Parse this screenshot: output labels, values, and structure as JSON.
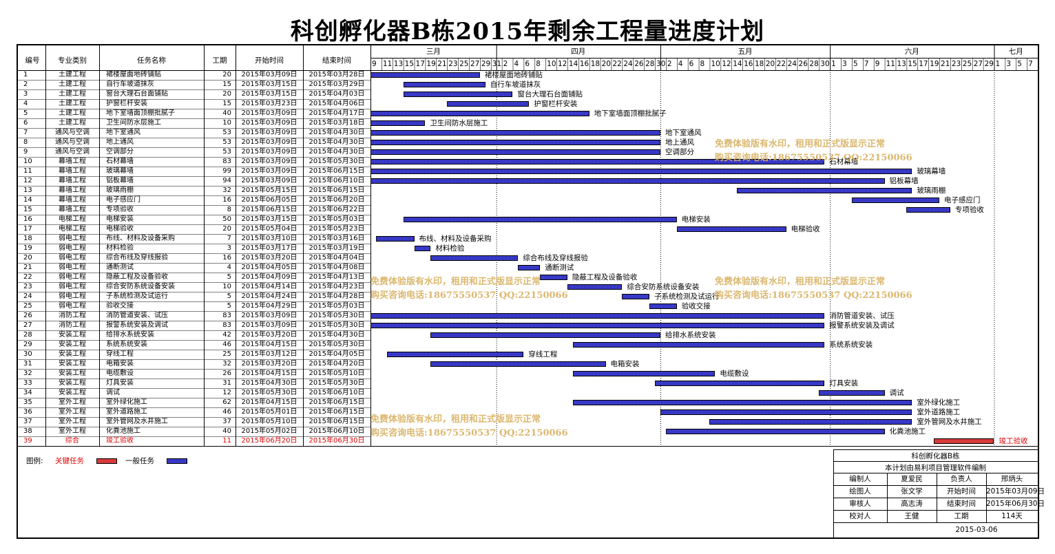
{
  "title": "科创孵化器B栋2015年剩余工程量进度计划",
  "columns": {
    "no": "编号",
    "category": "专业类别",
    "name": "任务名称",
    "duration": "工期",
    "start": "开始时间",
    "end": "结束时间"
  },
  "months": [
    "三月",
    "四月",
    "五月",
    "六月",
    "七月"
  ],
  "day_ticks": [
    "9",
    "11",
    "13",
    "15",
    "17",
    "19",
    "21",
    "23",
    "25",
    "27",
    "29",
    "31",
    "2",
    "4",
    "6",
    "8",
    "10",
    "12",
    "14",
    "16",
    "18",
    "20",
    "22",
    "24",
    "26",
    "28",
    "30",
    "2",
    "4",
    "6",
    "8",
    "10",
    "12",
    "14",
    "16",
    "18",
    "20",
    "22",
    "24",
    "26",
    "28",
    "30",
    "1",
    "3",
    "5",
    "7",
    "9",
    "11",
    "13",
    "15",
    "17",
    "19",
    "21",
    "23",
    "25",
    "27",
    "29",
    "1",
    "3",
    "5",
    "7"
  ],
  "timeline": {
    "start_date": "2015-03-09",
    "end_date": "2015-07-07"
  },
  "colors": {
    "normal": "#3434c8",
    "critical": "#d83a3a",
    "critical_text": "#e00000",
    "watermark": "#d8b060"
  },
  "tasks": [
    {
      "no": "1",
      "category": "土建工程",
      "name": "裙楼屋面地砖铺贴",
      "duration": "20",
      "start": "2015年03月09日",
      "end": "2015年03月28日",
      "s": "2015-03-09",
      "e": "2015-03-28",
      "critical": false
    },
    {
      "no": "2",
      "category": "土建工程",
      "name": "自行车坡道抹灰",
      "duration": "15",
      "start": "2015年03月15日",
      "end": "2015年03月29日",
      "s": "2015-03-15",
      "e": "2015-03-29",
      "critical": false
    },
    {
      "no": "3",
      "category": "土建工程",
      "name": "窗台大理石台面铺贴",
      "duration": "20",
      "start": "2015年03月15日",
      "end": "2015年04月03日",
      "s": "2015-03-15",
      "e": "2015-04-03",
      "critical": false
    },
    {
      "no": "4",
      "category": "土建工程",
      "name": "护窗栏杆安装",
      "duration": "15",
      "start": "2015年03月23日",
      "end": "2015年04月06日",
      "s": "2015-03-23",
      "e": "2015-04-06",
      "critical": false
    },
    {
      "no": "5",
      "category": "土建工程",
      "name": "地下室墙面顶棚批腻子",
      "duration": "40",
      "start": "2015年03月09日",
      "end": "2015年04月17日",
      "s": "2015-03-09",
      "e": "2015-04-17",
      "critical": false
    },
    {
      "no": "6",
      "category": "土建工程",
      "name": "卫生间防水层施工",
      "duration": "10",
      "start": "2015年03月09日",
      "end": "2015年03月18日",
      "s": "2015-03-09",
      "e": "2015-03-18",
      "critical": false
    },
    {
      "no": "7",
      "category": "通风与空调",
      "name": "地下室通风",
      "duration": "53",
      "start": "2015年03月09日",
      "end": "2015年04月30日",
      "s": "2015-03-09",
      "e": "2015-04-30",
      "critical": false
    },
    {
      "no": "8",
      "category": "通风与空调",
      "name": "地上通风",
      "duration": "53",
      "start": "2015年03月09日",
      "end": "2015年04月30日",
      "s": "2015-03-09",
      "e": "2015-04-30",
      "critical": false
    },
    {
      "no": "9",
      "category": "通风与空调",
      "name": "空调部分",
      "duration": "53",
      "start": "2015年03月09日",
      "end": "2015年04月30日",
      "s": "2015-03-09",
      "e": "2015-04-30",
      "critical": false
    },
    {
      "no": "10",
      "category": "幕墙工程",
      "name": "石材幕墙",
      "duration": "83",
      "start": "2015年03月09日",
      "end": "2015年05月30日",
      "s": "2015-03-09",
      "e": "2015-05-30",
      "critical": false
    },
    {
      "no": "11",
      "category": "幕墙工程",
      "name": "玻璃幕墙",
      "duration": "99",
      "start": "2015年03月09日",
      "end": "2015年06月15日",
      "s": "2015-03-09",
      "e": "2015-06-15",
      "critical": false
    },
    {
      "no": "12",
      "category": "幕墙工程",
      "name": "铝板幕墙",
      "duration": "94",
      "start": "2015年03月09日",
      "end": "2015年06月10日",
      "s": "2015-03-09",
      "e": "2015-06-10",
      "critical": false
    },
    {
      "no": "13",
      "category": "幕墙工程",
      "name": "玻璃雨棚",
      "duration": "32",
      "start": "2015年05月15日",
      "end": "2015年06月15日",
      "s": "2015-05-15",
      "e": "2015-06-15",
      "critical": false
    },
    {
      "no": "14",
      "category": "幕墙工程",
      "name": "电子感应门",
      "duration": "16",
      "start": "2015年06月05日",
      "end": "2015年06月20日",
      "s": "2015-06-05",
      "e": "2015-06-20",
      "critical": false
    },
    {
      "no": "15",
      "category": "幕墙工程",
      "name": "专项验收",
      "duration": "8",
      "start": "2015年06月15日",
      "end": "2015年06月22日",
      "s": "2015-06-15",
      "e": "2015-06-22",
      "critical": false
    },
    {
      "no": "16",
      "category": "电梯工程",
      "name": "电梯安装",
      "duration": "50",
      "start": "2015年03月15日",
      "end": "2015年05月03日",
      "s": "2015-03-15",
      "e": "2015-05-03",
      "critical": false
    },
    {
      "no": "17",
      "category": "电梯工程",
      "name": "电梯验收",
      "duration": "20",
      "start": "2015年05月04日",
      "end": "2015年05月23日",
      "s": "2015-05-04",
      "e": "2015-05-23",
      "critical": false
    },
    {
      "no": "18",
      "category": "弱电工程",
      "name": "布线、材料及设备采购",
      "duration": "7",
      "start": "2015年03月10日",
      "end": "2015年03月16日",
      "s": "2015-03-10",
      "e": "2015-03-16",
      "critical": false
    },
    {
      "no": "19",
      "category": "弱电工程",
      "name": "材料检验",
      "duration": "3",
      "start": "2015年03月17日",
      "end": "2015年03月19日",
      "s": "2015-03-17",
      "e": "2015-03-19",
      "critical": false
    },
    {
      "no": "20",
      "category": "弱电工程",
      "name": "综合布线及穿线报验",
      "duration": "16",
      "start": "2015年03月20日",
      "end": "2015年04月04日",
      "s": "2015-03-20",
      "e": "2015-04-04",
      "critical": false
    },
    {
      "no": "21",
      "category": "弱电工程",
      "name": "通断测试",
      "duration": "4",
      "start": "2015年04月05日",
      "end": "2015年04月08日",
      "s": "2015-04-05",
      "e": "2015-04-08",
      "critical": false
    },
    {
      "no": "22",
      "category": "弱电工程",
      "name": "隐蔽工程及设备验收",
      "duration": "5",
      "start": "2015年04月09日",
      "end": "2015年04月13日",
      "s": "2015-04-09",
      "e": "2015-04-13",
      "critical": false
    },
    {
      "no": "23",
      "category": "弱电工程",
      "name": "综合安防系统设备安装",
      "duration": "10",
      "start": "2015年04月14日",
      "end": "2015年04月23日",
      "s": "2015-04-14",
      "e": "2015-04-23",
      "critical": false
    },
    {
      "no": "24",
      "category": "弱电工程",
      "name": "子系统检测及试运行",
      "duration": "5",
      "start": "2015年04月24日",
      "end": "2015年04月28日",
      "s": "2015-04-24",
      "e": "2015-04-28",
      "critical": false
    },
    {
      "no": "25",
      "category": "弱电工程",
      "name": "验收交接",
      "duration": "5",
      "start": "2015年04月29日",
      "end": "2015年05月03日",
      "s": "2015-04-29",
      "e": "2015-05-03",
      "critical": false
    },
    {
      "no": "26",
      "category": "消防工程",
      "name": "消防管道安装、试压",
      "duration": "83",
      "start": "2015年03月09日",
      "end": "2015年05月30日",
      "s": "2015-03-09",
      "e": "2015-05-30",
      "critical": false
    },
    {
      "no": "27",
      "category": "消防工程",
      "name": "报警系统安装及调试",
      "duration": "83",
      "start": "2015年03月09日",
      "end": "2015年05月30日",
      "s": "2015-03-09",
      "e": "2015-05-30",
      "critical": false
    },
    {
      "no": "28",
      "category": "安装工程",
      "name": "给排水系统安装",
      "duration": "42",
      "start": "2015年03月20日",
      "end": "2015年04月30日",
      "s": "2015-03-20",
      "e": "2015-04-30",
      "critical": false
    },
    {
      "no": "29",
      "category": "安装工程",
      "name": "系统系统安装",
      "duration": "46",
      "start": "2015年04月15日",
      "end": "2015年05月30日",
      "s": "2015-04-15",
      "e": "2015-05-30",
      "critical": false
    },
    {
      "no": "30",
      "category": "安装工程",
      "name": "穿线工程",
      "duration": "25",
      "start": "2015年03月12日",
      "end": "2015年04月05日",
      "s": "2015-03-12",
      "e": "2015-04-05",
      "critical": false
    },
    {
      "no": "31",
      "category": "安装工程",
      "name": "电箱安装",
      "duration": "32",
      "start": "2015年03月20日",
      "end": "2015年04月20日",
      "s": "2015-03-20",
      "e": "2015-04-20",
      "critical": false
    },
    {
      "no": "32",
      "category": "安装工程",
      "name": "电缆敷设",
      "duration": "26",
      "start": "2015年04月15日",
      "end": "2015年05月10日",
      "s": "2015-04-15",
      "e": "2015-05-10",
      "critical": false
    },
    {
      "no": "33",
      "category": "安装工程",
      "name": "灯具安装",
      "duration": "31",
      "start": "2015年04月30日",
      "end": "2015年05月30日",
      "s": "2015-04-30",
      "e": "2015-05-30",
      "critical": false
    },
    {
      "no": "34",
      "category": "安装工程",
      "name": "调试",
      "duration": "12",
      "start": "2015年05月30日",
      "end": "2015年06月10日",
      "s": "2015-05-30",
      "e": "2015-06-10",
      "critical": false
    },
    {
      "no": "35",
      "category": "室外工程",
      "name": "室外绿化施工",
      "duration": "62",
      "start": "2015年04月15日",
      "end": "2015年06月15日",
      "s": "2015-04-15",
      "e": "2015-06-15",
      "critical": false
    },
    {
      "no": "36",
      "category": "室外工程",
      "name": "室外道路施工",
      "duration": "46",
      "start": "2015年05月01日",
      "end": "2015年06月15日",
      "s": "2015-05-01",
      "e": "2015-06-15",
      "critical": false
    },
    {
      "no": "37",
      "category": "室外工程",
      "name": "室外管网及水井施工",
      "duration": "37",
      "start": "2015年05月10日",
      "end": "2015年06月15日",
      "s": "2015-05-10",
      "e": "2015-06-15",
      "critical": false
    },
    {
      "no": "38",
      "category": "室外工程",
      "name": "化粪池施工",
      "duration": "40",
      "start": "2015年05月02日",
      "end": "2015年06月10日",
      "s": "2015-05-02",
      "e": "2015-06-10",
      "critical": false
    },
    {
      "no": "39",
      "category": "综合",
      "name": "竣工验收",
      "duration": "11",
      "start": "2015年06月20日",
      "end": "2015年06月30日",
      "s": "2015-06-20",
      "e": "2015-06-30",
      "critical": true
    }
  ],
  "legend": {
    "label": "图例:",
    "critical": "关键任务",
    "normal": "一般任务"
  },
  "watermark": {
    "line1": "免费体验版有水印，租用和正式版显示正常",
    "line2": "购买咨询电话:18675550537 QQ:22150066"
  },
  "info": {
    "project": "科创孵化器B栋",
    "note": "本计划由易利项目管理软件编制",
    "rows": [
      [
        "编制人",
        "夏爱民",
        "负责人",
        "邢炳头"
      ],
      [
        "绘图人",
        "张文学",
        "开始时间",
        "2015年03月09日"
      ],
      [
        "审核人",
        "高志涛",
        "结束时间",
        "2015年06月30日"
      ],
      [
        "校对人",
        "王健",
        "工期",
        "114天"
      ]
    ],
    "date": "2015-03-06"
  }
}
